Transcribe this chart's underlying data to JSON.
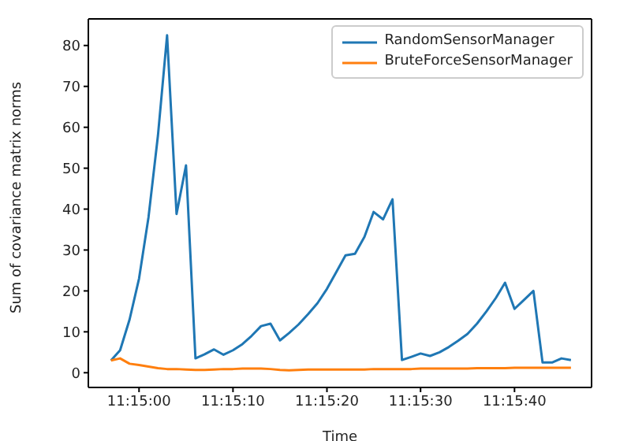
{
  "chart_data": {
    "type": "line",
    "xlabel": "Time",
    "ylabel": "Sum of covariance matrix norms",
    "x": [
      11.24917,
      11.24944,
      11.24972,
      11.25,
      11.25028,
      11.25056,
      11.25083,
      11.25111,
      11.25139,
      11.25167,
      11.25194,
      11.25222,
      11.2525,
      11.25278,
      11.25306,
      11.25333,
      11.25361,
      11.25389,
      11.25417,
      11.25444,
      11.25472,
      11.255,
      11.25528,
      11.25556,
      11.25583,
      11.25611,
      11.25639,
      11.25667,
      11.25694,
      11.25722,
      11.2575,
      11.25778,
      11.25806,
      11.25833,
      11.25861,
      11.25889,
      11.25917,
      11.25944,
      11.25972,
      11.26,
      11.26028,
      11.26056,
      11.26083,
      11.26111,
      11.26139,
      11.26167,
      11.26194,
      11.26222,
      11.2625,
      11.26278
    ],
    "series": [
      {
        "name": "RandomSensorManager",
        "color": "#1f77b4",
        "values": [
          3,
          5.5,
          13,
          23,
          38,
          58,
          82.5,
          38.8,
          50.7,
          3.5,
          4.5,
          5.7,
          4.4,
          5.5,
          7,
          9,
          11.4,
          12,
          7.9,
          9.7,
          11.8,
          14.3,
          17,
          20.5,
          24.5,
          28.7,
          29.1,
          33.2,
          39.3,
          37.5,
          42.4,
          3.1,
          3.9,
          4.7,
          4.1,
          5,
          6.3,
          7.8,
          9.5,
          12,
          15,
          18.3,
          22,
          15.6,
          17.8,
          20,
          2.5,
          2.5,
          3.5,
          3.1
        ]
      },
      {
        "name": "BruteForceSensorManager",
        "color": "#ff7f0e",
        "values": [
          3,
          3.5,
          2.2,
          1.9,
          1.5,
          1.1,
          0.9,
          0.9,
          0.8,
          0.7,
          0.7,
          0.8,
          0.9,
          0.9,
          1,
          1,
          1,
          0.9,
          0.7,
          0.6,
          0.7,
          0.8,
          0.8,
          0.8,
          0.8,
          0.8,
          0.8,
          0.8,
          0.9,
          0.9,
          0.9,
          0.9,
          0.9,
          1,
          1,
          1,
          1,
          1,
          1,
          1.1,
          1.1,
          1.1,
          1.1,
          1.2,
          1.2,
          1.2,
          1.2,
          1.2,
          1.2,
          1.2
        ]
      }
    ],
    "xlim": [
      11.2485,
      11.26339
    ],
    "xticks": [
      {
        "value": 11.25,
        "label": "11:15:00"
      },
      {
        "value": 11.25278,
        "label": "11:15:10"
      },
      {
        "value": 11.25556,
        "label": "11:15:20"
      },
      {
        "value": 11.25833,
        "label": "11:15:30"
      },
      {
        "value": 11.26111,
        "label": "11:15:40"
      }
    ],
    "ylim": [
      -3.6,
      86.5
    ],
    "yticks": [
      0,
      10,
      20,
      30,
      40,
      50,
      60,
      70,
      80
    ],
    "legend": "top right",
    "grid": false,
    "marker": "none",
    "line_style": "solid"
  }
}
